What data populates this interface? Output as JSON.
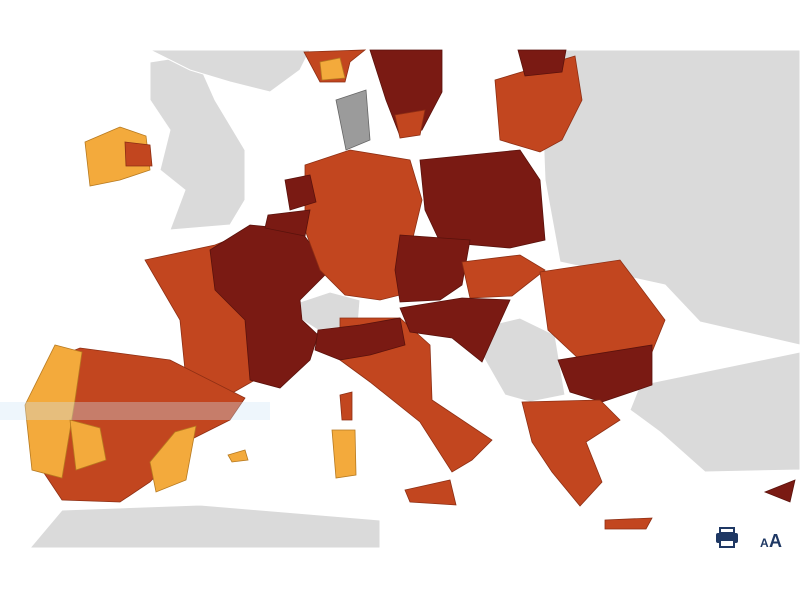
{
  "toolbar": {
    "font_size_small": "A",
    "font_size_large": "A"
  }
}
